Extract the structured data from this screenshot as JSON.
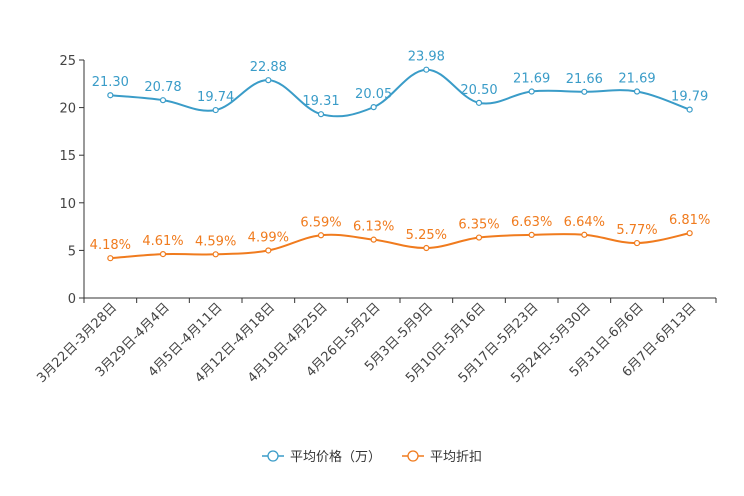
{
  "chart_data": {
    "type": "line",
    "title": "",
    "xlabel": "",
    "ylabel": "",
    "ylim": [
      0,
      25
    ],
    "yticks": [
      0,
      5,
      10,
      15,
      20,
      25
    ],
    "grid": false,
    "legend_position": "bottom-center",
    "categories": [
      "3月22日-3月28日",
      "3月29日-4月4日",
      "4月5日-4月11日",
      "4月12日-4月18日",
      "4月19日-4月25日",
      "4月26日-5月2日",
      "5月3日-5月9日",
      "5月10日-5月16日",
      "5月17日-5月23日",
      "5月24日-5月30日",
      "5月31日-6月6日",
      "6月7日-6月13日"
    ],
    "series": [
      {
        "name": "平均价格（万）",
        "color": "#3a9cc8",
        "values": [
          21.3,
          20.78,
          19.74,
          22.88,
          19.31,
          20.05,
          23.98,
          20.5,
          21.69,
          21.66,
          21.69,
          19.79
        ],
        "labels": [
          "21.30",
          "20.78",
          "19.74",
          "22.88",
          "19.31",
          "20.05",
          "23.98",
          "20.50",
          "21.69",
          "21.66",
          "21.69",
          "19.79"
        ]
      },
      {
        "name": "平均折扣",
        "color": "#f07b1e",
        "values": [
          4.18,
          4.61,
          4.59,
          4.99,
          6.59,
          6.13,
          5.25,
          6.35,
          6.63,
          6.64,
          5.77,
          6.81
        ],
        "labels": [
          "4.18%",
          "4.61%",
          "4.59%",
          "4.99%",
          "6.59%",
          "6.13%",
          "5.25%",
          "6.35%",
          "6.63%",
          "6.64%",
          "5.77%",
          "6.81%"
        ]
      }
    ]
  }
}
